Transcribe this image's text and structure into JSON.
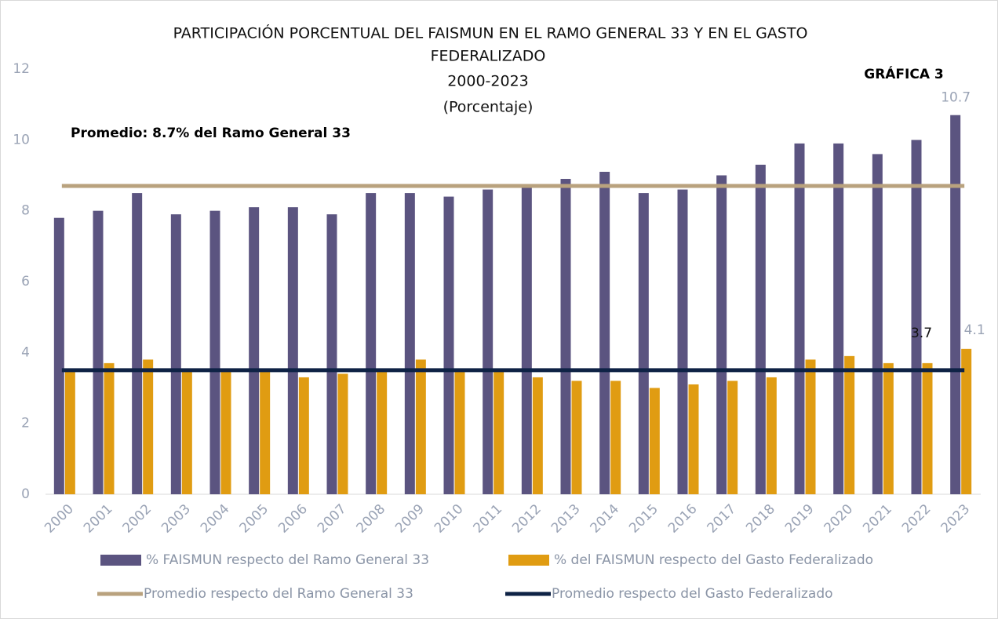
{
  "chart_data": {
    "type": "bar",
    "title": [
      "PARTICIPACIÓN PORCENTUAL DEL FAISMUN EN EL RAMO GENERAL 33 Y EN EL GASTO",
      "FEDERALIZADO"
    ],
    "subtitle": "2000-2023",
    "unit": "(Porcentaje)",
    "label": "GRÁFICA 3",
    "annotation": "Promedio: 8.7% del Ramo General 33",
    "categories": [
      "2000",
      "2001",
      "2002",
      "2003",
      "2004",
      "2005",
      "2006",
      "2007",
      "2008",
      "2009",
      "2010",
      "2011",
      "2012",
      "2013",
      "2014",
      "2015",
      "2016",
      "2017",
      "2018",
      "2019",
      "2020",
      "2021",
      "2022",
      "2023"
    ],
    "series": [
      {
        "name": "% FAISMUN respecto del Ramo General 33",
        "color": "#5b5480",
        "type": "bar",
        "values": [
          7.8,
          8.0,
          8.5,
          7.9,
          8.0,
          8.1,
          8.1,
          7.9,
          8.5,
          8.5,
          8.4,
          8.6,
          8.7,
          8.9,
          9.1,
          8.5,
          8.6,
          9.0,
          9.3,
          9.9,
          9.9,
          9.6,
          10.0,
          10.7
        ]
      },
      {
        "name": "% del FAISMUN respecto del Gasto Federalizado",
        "color": "#e09c12",
        "type": "bar",
        "values": [
          3.5,
          3.7,
          3.8,
          3.5,
          3.5,
          3.5,
          3.3,
          3.4,
          3.5,
          3.8,
          3.5,
          3.5,
          3.3,
          3.2,
          3.2,
          3.0,
          3.1,
          3.2,
          3.3,
          3.8,
          3.9,
          3.7,
          3.7,
          4.1
        ]
      },
      {
        "name": "Promedio respecto del Ramo General 33",
        "color": "#b9a27e",
        "type": "line",
        "values": [
          8.7,
          8.7,
          8.7,
          8.7,
          8.7,
          8.7,
          8.7,
          8.7,
          8.7,
          8.7,
          8.7,
          8.7,
          8.7,
          8.7,
          8.7,
          8.7,
          8.7,
          8.7,
          8.7,
          8.7,
          8.7,
          8.7,
          8.7,
          8.7
        ]
      },
      {
        "name": "Promedio respecto del Gasto Federalizado",
        "color": "#0e2245",
        "type": "line",
        "values": [
          3.5,
          3.5,
          3.5,
          3.5,
          3.5,
          3.5,
          3.5,
          3.5,
          3.5,
          3.5,
          3.5,
          3.5,
          3.5,
          3.5,
          3.5,
          3.5,
          3.5,
          3.5,
          3.5,
          3.5,
          3.5,
          3.5,
          3.5,
          3.5
        ]
      }
    ],
    "ylim": [
      0,
      12
    ],
    "yticks": [
      0,
      2,
      4,
      6,
      8,
      10,
      12
    ],
    "grid": false
  }
}
